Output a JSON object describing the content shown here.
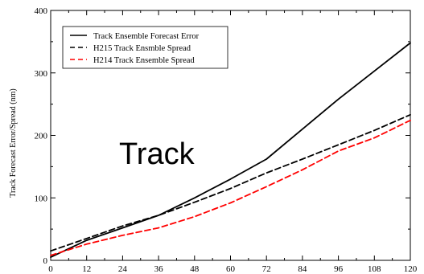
{
  "chart_data": {
    "type": "line",
    "title": "",
    "overlay_label": "Track",
    "xlabel": "",
    "ylabel": "Track Forecast Error/Spread (nm)",
    "xlim": [
      0,
      120
    ],
    "ylim": [
      0,
      400
    ],
    "x_ticks": [
      0,
      12,
      24,
      36,
      48,
      60,
      72,
      84,
      96,
      108,
      120
    ],
    "y_ticks": [
      0,
      100,
      200,
      300,
      400
    ],
    "grid": false,
    "legend_position": "top-left",
    "x": [
      0,
      12,
      24,
      36,
      48,
      60,
      72,
      84,
      96,
      108,
      120
    ],
    "series": [
      {
        "name": "Track Ensemble Forecast Error",
        "color": "#000000",
        "style": "solid",
        "values": [
          5,
          32,
          52,
          72,
          100,
          130,
          162,
          210,
          258,
          303,
          348
        ]
      },
      {
        "name": "H215 Track Ensmble Spread",
        "color": "#000000",
        "style": "dashed",
        "values": [
          15,
          35,
          55,
          72,
          93,
          115,
          140,
          162,
          185,
          208,
          233
        ]
      },
      {
        "name": "H214 Track Ensemble Spread",
        "color": "#ff0000",
        "style": "dashed",
        "values": [
          8,
          26,
          40,
          52,
          70,
          92,
          118,
          145,
          175,
          196,
          224
        ]
      }
    ]
  }
}
